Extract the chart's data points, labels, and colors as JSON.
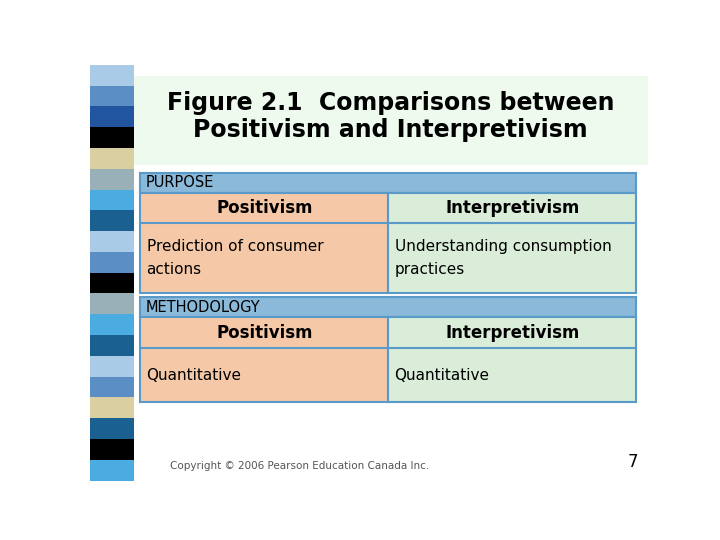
{
  "title_line1": "Figure 2.1  Comparisons between",
  "title_line2": "Positivism and Interpretivism",
  "title_bg": "#edfaed",
  "slide_bg": "#ffffff",
  "section_header_bg": "#8ab9d9",
  "section_header_text": "#000000",
  "positivism_bg": "#f5c9a8",
  "interpretivism_bg": "#d9edd9",
  "border_color": "#5a9ac8",
  "copyright_text": "Copyright © 2006 Pearson Education Canada Inc.",
  "page_number": "7",
  "left_bar_colors": [
    "#aacbe8",
    "#5b8ec4",
    "#2155a0",
    "#000000",
    "#d9cfa0",
    "#9ab0b8",
    "#4aace0",
    "#1a6090",
    "#aacbe8",
    "#5b8ec4",
    "#000000",
    "#9ab0b8",
    "#4aace0",
    "#1a6090",
    "#aacbe8",
    "#5b8ec4",
    "#d9cfa0",
    "#1a6090",
    "#000000",
    "#4aace0"
  ],
  "sections": [
    {
      "header": "PURPOSE",
      "positivism_header": "Positivism",
      "interpretivism_header": "Interpretivism",
      "positivism_content": "Prediction of consumer\nactions",
      "interpretivism_content": "Understanding consumption\npractices"
    },
    {
      "header": "METHODOLOGY",
      "positivism_header": "Positivism",
      "interpretivism_header": "Interpretivism",
      "positivism_content": "Quantitative",
      "interpretivism_content": "Quantitative"
    }
  ]
}
